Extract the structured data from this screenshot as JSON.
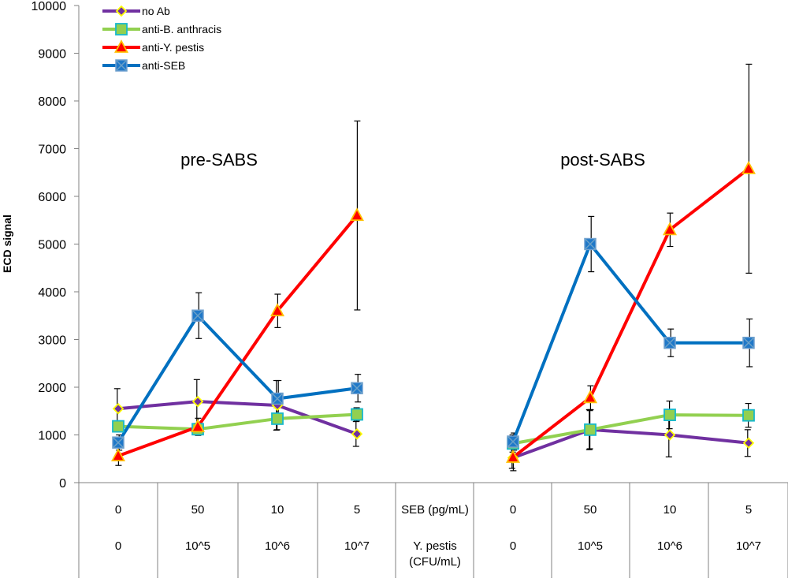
{
  "chart_data": {
    "type": "line",
    "ylabel": "ECD signal",
    "ylim": [
      0,
      10000
    ],
    "yticks": [
      0,
      1000,
      2000,
      3000,
      4000,
      5000,
      6000,
      7000,
      8000,
      9000,
      10000
    ],
    "annotations": [
      "pre-SABS",
      "post-SABS"
    ],
    "table": {
      "row1_label": "SEB (pg/mL)",
      "row2_label": "Y. pestis (CFU/mL)",
      "row1_values": [
        "0",
        "50",
        "10",
        "5",
        "0",
        "50",
        "10",
        "5"
      ],
      "row2_values": [
        "0",
        "10^5",
        "10^6",
        "10^7",
        "0",
        "10^5",
        "10^6",
        "10^7"
      ]
    },
    "series": [
      {
        "name": "no Ab",
        "line_color": "#7030a0",
        "marker": "diamond",
        "marker_fill": "#7030a0",
        "marker_stroke": "#ffff00",
        "groups": [
          {
            "points": [
              1550,
              1700,
              1620,
              1020
            ],
            "err": [
              420,
              460,
              520,
              260
            ]
          },
          {
            "points": [
              520,
              1110,
              1000,
              830
            ],
            "err": [
              220,
              420,
              460,
              280
            ]
          }
        ]
      },
      {
        "name": "anti-B. anthracis",
        "line_color": "#92d050",
        "marker": "square",
        "marker_fill": "#92d050",
        "marker_stroke": "#17b8cc",
        "groups": [
          {
            "points": [
              1180,
              1120,
              1340,
              1430
            ],
            "err": [
              0,
              0,
              230,
              140
            ]
          },
          {
            "points": [
              820,
              1110,
              1420,
              1410
            ],
            "err": [
              180,
              400,
              290,
              250
            ]
          }
        ]
      },
      {
        "name": "anti-Y. pestis",
        "line_color": "#ff0000",
        "marker": "triangle",
        "marker_fill": "#ff0000",
        "marker_stroke": "#ffc000",
        "groups": [
          {
            "points": [
              560,
              1170,
              3600,
              5600
            ],
            "err": [
              200,
              180,
              350,
              1980
            ]
          },
          {
            "points": [
              530,
              1780,
              5300,
              6580
            ],
            "err": [
              280,
              250,
              350,
              2190
            ]
          }
        ]
      },
      {
        "name": "anti-SEB",
        "line_color": "#0070c0",
        "marker": "xsquare",
        "marker_fill": "#1f78c8",
        "marker_stroke": "#70a0d0",
        "groups": [
          {
            "points": [
              840,
              3500,
              1760,
              1980
            ],
            "err": [
              160,
              480,
              380,
              290
            ]
          },
          {
            "points": [
              860,
              5000,
              2930,
              2930
            ],
            "err": [
              180,
              580,
              290,
              500
            ]
          }
        ]
      }
    ]
  }
}
